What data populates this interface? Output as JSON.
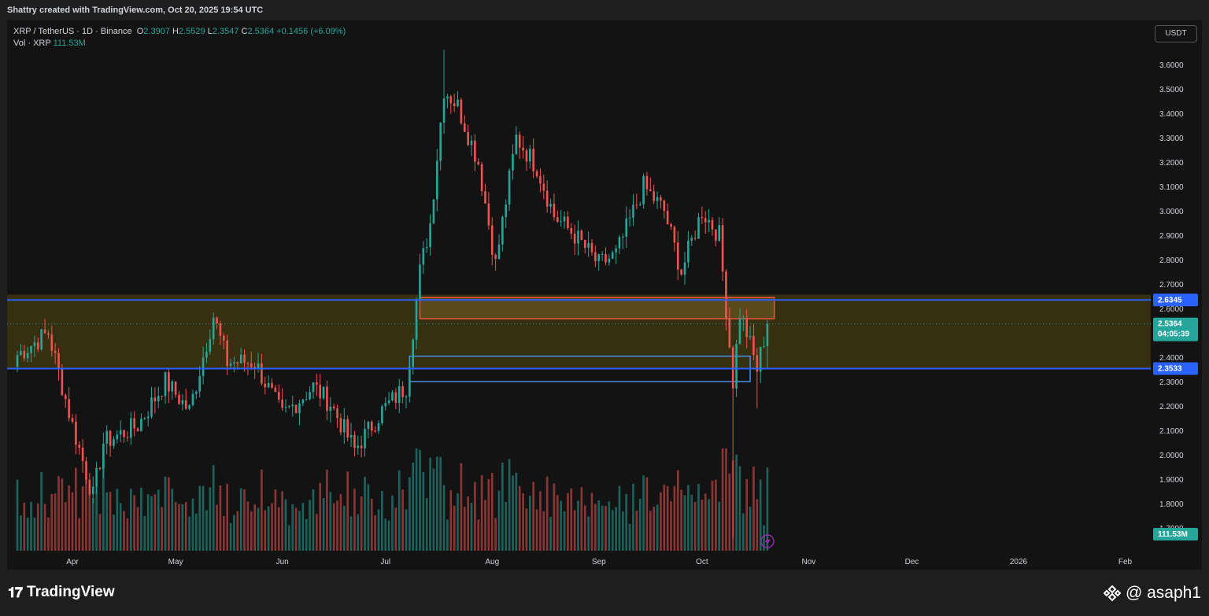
{
  "header": {
    "attribution": "Shattry created with TradingView.com, Oct 20, 2025 19:54 UTC"
  },
  "legend": {
    "symbol": "XRP / TetherUS · 1D · Binance",
    "open_label": "O",
    "open": "2.3907",
    "high_label": "H",
    "high": "2.5529",
    "low_label": "L",
    "low": "2.3547",
    "close_label": "C",
    "close": "2.5364",
    "change": "+0.1456 (+6.09%)",
    "volume_label": "Vol · XRP",
    "volume": "111.53M"
  },
  "currency_button": "USDT",
  "price_badges": {
    "upper_level": "2.6345",
    "lower_level": "2.3533",
    "last_price": "2.5364",
    "countdown": "04:05:39",
    "last_volume": "111.53M"
  },
  "colors": {
    "up": "#26a69a",
    "down": "#ef5350",
    "level_line": "#2962ff",
    "zone_fill": "#4a3f10",
    "orange_box": "#f0533f"
  },
  "icons": {
    "flash": "lightning-icon",
    "brand": "tradingview-logo",
    "exchange": "binance-icon"
  },
  "footer": {
    "brand": "TradingView",
    "handle": "@ asaph1"
  },
  "chart_data": {
    "type": "candlestick",
    "title": "XRP / TetherUS · 1D · Binance",
    "price_axis": {
      "ticks": [
        "3.6000",
        "3.5000",
        "3.4000",
        "3.3000",
        "3.2000",
        "3.1000",
        "3.0000",
        "2.9000",
        "2.8000",
        "2.7000",
        "2.6000",
        "2.4000",
        "2.3000",
        "2.2000",
        "2.1000",
        "2.0000",
        "1.9000",
        "1.8000",
        "1.7000"
      ],
      "range": [
        1.66,
        3.72
      ]
    },
    "time_axis": {
      "labels": [
        "Apr",
        "May",
        "Jun",
        "Jul",
        "Aug",
        "Sep",
        "Oct",
        "Nov",
        "Dec",
        "2026",
        "Feb"
      ]
    },
    "levels": [
      {
        "price": 2.6345
      },
      {
        "price": 2.3533
      }
    ],
    "zones": [
      {
        "from": 2.6565,
        "to": 2.355,
        "start": "2025-03-16",
        "end": "open"
      },
      {
        "from": 2.6445,
        "to": 2.5575,
        "start": "2025-07-11",
        "end": "2025-10-22"
      },
      {
        "from": 2.404,
        "to": 2.3,
        "start": "2025-07-08",
        "end": "2025-10-15"
      }
    ],
    "anchors": [
      [
        "2025-03-16",
        2.41
      ],
      [
        "2025-03-25",
        2.5
      ],
      [
        "2025-04-01",
        2.12
      ],
      [
        "2025-04-07",
        1.83
      ],
      [
        "2025-04-10",
        2.05
      ],
      [
        "2025-04-20",
        2.12
      ],
      [
        "2025-04-28",
        2.3
      ],
      [
        "2025-05-05",
        2.18
      ],
      [
        "2025-05-12",
        2.57
      ],
      [
        "2025-05-16",
        2.38
      ],
      [
        "2025-05-24",
        2.38
      ],
      [
        "2025-06-01",
        2.16
      ],
      [
        "2025-06-10",
        2.28
      ],
      [
        "2025-06-15",
        2.21
      ],
      [
        "2025-06-22",
        2.02
      ],
      [
        "2025-06-30",
        2.18
      ],
      [
        "2025-07-07",
        2.28
      ],
      [
        "2025-07-11",
        2.75
      ],
      [
        "2025-07-14",
        2.95
      ],
      [
        "2025-07-18",
        3.5
      ],
      [
        "2025-07-22",
        3.43
      ],
      [
        "2025-07-28",
        3.2
      ],
      [
        "2025-08-02",
        2.78
      ],
      [
        "2025-08-08",
        3.3
      ],
      [
        "2025-08-14",
        3.18
      ],
      [
        "2025-08-19",
        2.98
      ],
      [
        "2025-08-25",
        2.9
      ],
      [
        "2025-09-01",
        2.78
      ],
      [
        "2025-09-06",
        2.82
      ],
      [
        "2025-09-14",
        3.1
      ],
      [
        "2025-09-20",
        3.0
      ],
      [
        "2025-09-25",
        2.75
      ],
      [
        "2025-10-01",
        3.0
      ],
      [
        "2025-10-06",
        2.9
      ],
      [
        "2025-10-10",
        2.3
      ],
      [
        "2025-10-12",
        2.58
      ],
      [
        "2025-10-14",
        2.5
      ],
      [
        "2025-10-17",
        2.35
      ],
      [
        "2025-10-20",
        2.5364
      ]
    ],
    "extremes": [
      {
        "date": "2025-07-18",
        "high": 3.66
      },
      {
        "date": "2025-10-10",
        "low": 1.66
      },
      {
        "date": "2025-10-17",
        "low": 2.19
      }
    ],
    "volume_max_label": "111.53M"
  }
}
